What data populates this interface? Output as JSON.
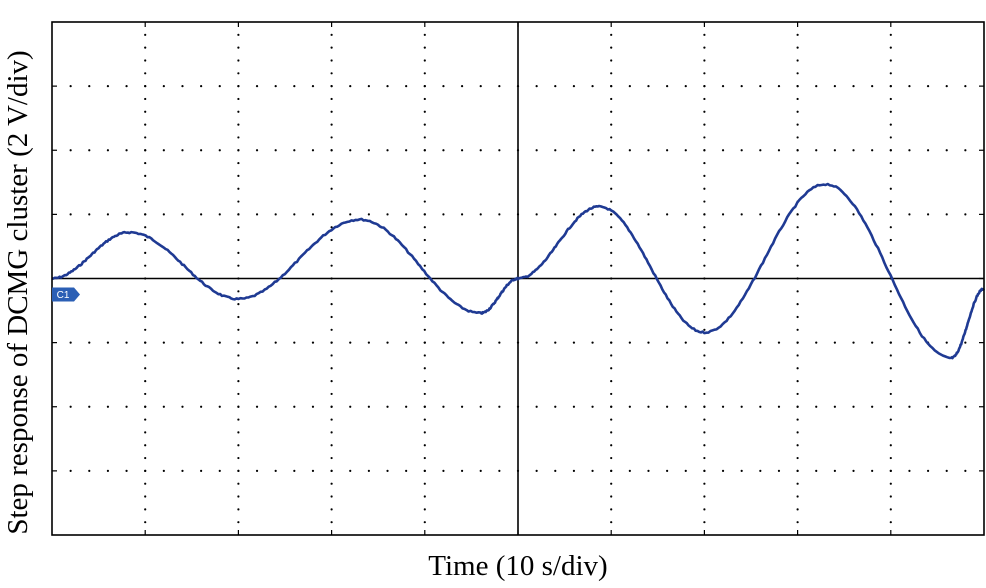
{
  "chart_data": {
    "type": "line",
    "xlabel": "Time (10 s/div)",
    "ylabel": "Step response of DCMG cluster (2 V/div)",
    "x_divisions": 10,
    "y_divisions": 8,
    "xlim": [
      0,
      100
    ],
    "ylim": [
      -8,
      8
    ],
    "grid": true,
    "channel_label": "C1",
    "colors": {
      "trace": "#1f3a93",
      "marker": "#2b5fb5",
      "axis": "#000000"
    },
    "series": [
      {
        "values": [
          [
            0,
            0.0
          ],
          [
            8.3,
            1.44
          ],
          [
            20,
            -0.64
          ],
          [
            33,
            1.84
          ],
          [
            46,
            -1.08
          ],
          [
            50,
            0.0
          ],
          [
            58.7,
            2.24
          ],
          [
            70,
            -1.68
          ],
          [
            83,
            2.94
          ],
          [
            96.5,
            -2.48
          ],
          [
            100,
            -0.32
          ]
        ]
      }
    ]
  }
}
